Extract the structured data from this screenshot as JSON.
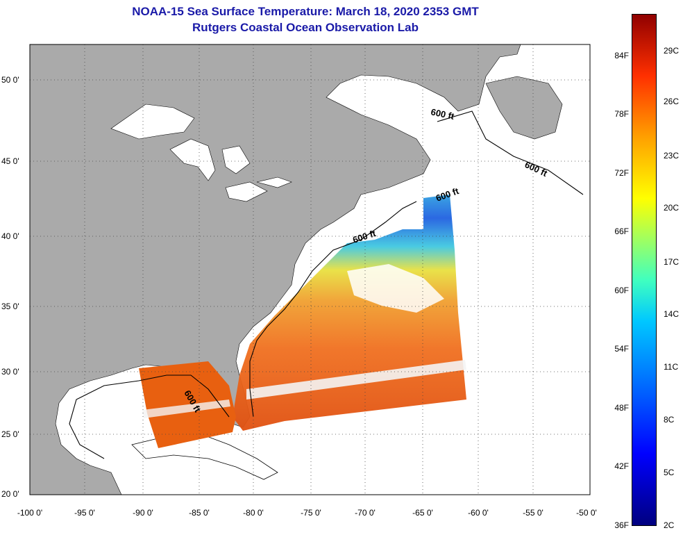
{
  "title": {
    "line1": "NOAA-15 Sea Surface Temperature:  March 18, 2020 2353 GMT",
    "line2": "Rutgers Coastal Ocean Observation Lab"
  },
  "map": {
    "lat_labels": [
      "50 0'",
      "45 0'",
      "40 0'",
      "35 0'",
      "30 0'",
      "25 0'",
      "20 0'"
    ],
    "lon_labels": [
      "-100 0'",
      "-95 0'",
      "-90 0'",
      "-85 0'",
      "-80 0'",
      "-75 0'",
      "-70 0'",
      "-65 0'",
      "-60 0'",
      "-55 0'",
      "-50 0'"
    ],
    "contour_label": "600 ft",
    "colors": {
      "land": "#aaaaaa",
      "ocean": "#ffffff",
      "title": "#1a1aa8"
    }
  },
  "colorbar": {
    "f_labels": [
      "84F",
      "78F",
      "72F",
      "66F",
      "60F",
      "54F",
      "48F",
      "42F",
      "36F"
    ],
    "c_labels": [
      "29C",
      "26C",
      "23C",
      "20C",
      "17C",
      "14C",
      "11C",
      "8C",
      "5C",
      "2C"
    ]
  }
}
